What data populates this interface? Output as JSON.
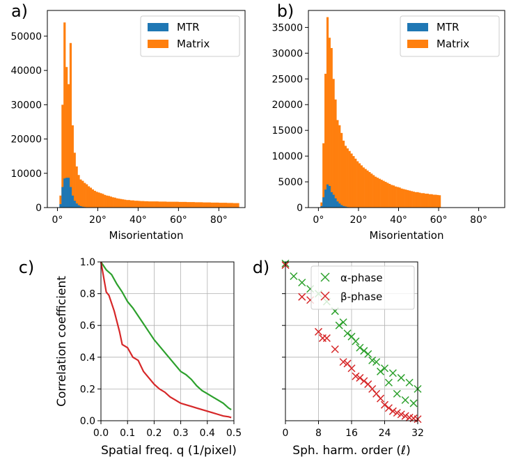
{
  "colors": {
    "mtr": "#1f77b4",
    "matrix": "#ff7f0e",
    "alpha": "#2ca02c",
    "beta": "#d62728"
  },
  "chart_data": [
    {
      "id": "a",
      "type": "bar",
      "panel_label": "a)",
      "xlabel": "Misorientation",
      "ylabel": "",
      "xlim": [
        -5,
        93
      ],
      "ylim": [
        0,
        57500
      ],
      "xticks": [
        0,
        20,
        40,
        60,
        80
      ],
      "xtick_labels": [
        "0°",
        "20°",
        "40°",
        "60°",
        "80°"
      ],
      "yticks": [
        0,
        10000,
        20000,
        30000,
        40000,
        50000
      ],
      "ytick_labels": [
        "0",
        "10000",
        "20000",
        "30000",
        "40000",
        "50000"
      ],
      "legend": "top-right",
      "bin_width": 1,
      "series": [
        {
          "name": "Matrix",
          "color_key": "matrix",
          "x0": 1,
          "values": [
            3500,
            30000,
            54000,
            41000,
            36000,
            48000,
            24000,
            16000,
            12000,
            9500,
            8200,
            7800,
            7200,
            6800,
            6200,
            5800,
            5300,
            4900,
            4600,
            4400,
            4200,
            4000,
            3700,
            3500,
            3400,
            3200,
            3000,
            2900,
            2700,
            2600,
            2500,
            2400,
            2300,
            2200,
            2200,
            2100,
            2100,
            2000,
            2000,
            1950,
            1900,
            1900,
            1850,
            1850,
            1800,
            1800,
            1800,
            1800,
            1800,
            1750,
            1750,
            1750,
            1750,
            1700,
            1700,
            1700,
            1700,
            1700,
            1700,
            1650,
            1650,
            1650,
            1650,
            1600,
            1600,
            1600,
            1600,
            1550,
            1550,
            1550,
            1550,
            1500,
            1500,
            1500,
            1500,
            1450,
            1450,
            1450,
            1450,
            1400,
            1400,
            1400,
            1400,
            1350,
            1350,
            1350,
            1300,
            1300,
            1300
          ]
        },
        {
          "name": "MTR",
          "color_key": "mtr",
          "x0": 1,
          "values": [
            1000,
            6000,
            8500,
            8700,
            8700,
            6000,
            3500,
            2000,
            1200,
            700,
            400,
            250,
            150,
            100,
            60,
            40,
            30,
            20,
            10,
            10
          ]
        }
      ]
    },
    {
      "id": "b",
      "type": "bar",
      "panel_label": "b)",
      "xlabel": "Misorientation",
      "ylabel": "",
      "xlim": [
        -5,
        93
      ],
      "ylim": [
        0,
        38300
      ],
      "xticks": [
        0,
        20,
        40,
        60,
        80
      ],
      "xtick_labels": [
        "0°",
        "20°",
        "40°",
        "60°",
        "80°"
      ],
      "yticks": [
        0,
        5000,
        10000,
        15000,
        20000,
        25000,
        30000,
        35000
      ],
      "ytick_labels": [
        "0",
        "5000",
        "10000",
        "15000",
        "20000",
        "25000",
        "30000",
        "35000"
      ],
      "legend": "top-right",
      "bin_width": 1,
      "series": [
        {
          "name": "Matrix",
          "color_key": "matrix",
          "x0": 1,
          "values": [
            1000,
            12500,
            26000,
            37000,
            33000,
            31000,
            25000,
            21000,
            17000,
            16000,
            14500,
            13000,
            12000,
            11500,
            11000,
            10500,
            10000,
            9500,
            9000,
            8600,
            8200,
            7800,
            7500,
            7200,
            6900,
            6600,
            6300,
            6000,
            5800,
            5600,
            5400,
            5200,
            5000,
            4800,
            4600,
            4400,
            4300,
            4100,
            4000,
            3900,
            3700,
            3600,
            3500,
            3400,
            3300,
            3200,
            3100,
            3000,
            3000,
            2900,
            2800,
            2800,
            2700,
            2700,
            2600,
            2600,
            2500,
            2500,
            2450,
            2400
          ]
        },
        {
          "name": "MTR",
          "color_key": "mtr",
          "x0": 1,
          "values": [
            300,
            2000,
            3500,
            4500,
            4200,
            3000,
            2500,
            1800,
            1200,
            800,
            500,
            300,
            200,
            100,
            60,
            40,
            20
          ]
        }
      ]
    },
    {
      "id": "c",
      "type": "line",
      "panel_label": "c)",
      "xlabel": "Spatial freq. q  (1/pixel)",
      "ylabel": "Correlation coefficient",
      "xlim": [
        0,
        0.5
      ],
      "ylim": [
        0,
        1.0
      ],
      "xticks": [
        0,
        0.1,
        0.2,
        0.3,
        0.4,
        0.5
      ],
      "xtick_labels": [
        "0.0",
        "0.1",
        "0.2",
        "0.3",
        "0.4",
        "0.5"
      ],
      "yticks": [
        0,
        0.2,
        0.4,
        0.6,
        0.8,
        1.0
      ],
      "ytick_labels": [
        "0.0",
        "0.2",
        "0.4",
        "0.6",
        "0.8",
        "1.0"
      ],
      "grid": true,
      "series": [
        {
          "name": "green",
          "color_key": "alpha",
          "x": [
            0,
            0.02,
            0.04,
            0.06,
            0.08,
            0.1,
            0.12,
            0.14,
            0.16,
            0.18,
            0.2,
            0.22,
            0.24,
            0.26,
            0.28,
            0.3,
            0.32,
            0.34,
            0.36,
            0.38,
            0.4,
            0.42,
            0.44,
            0.46,
            0.48,
            0.49
          ],
          "y": [
            1.0,
            0.95,
            0.92,
            0.86,
            0.81,
            0.75,
            0.71,
            0.66,
            0.61,
            0.56,
            0.51,
            0.47,
            0.43,
            0.39,
            0.35,
            0.31,
            0.29,
            0.26,
            0.22,
            0.19,
            0.17,
            0.15,
            0.13,
            0.11,
            0.08,
            0.07
          ]
        },
        {
          "name": "red",
          "color_key": "beta",
          "x": [
            0,
            0.02,
            0.03,
            0.05,
            0.07,
            0.08,
            0.1,
            0.12,
            0.14,
            0.16,
            0.18,
            0.2,
            0.22,
            0.24,
            0.26,
            0.28,
            0.3,
            0.32,
            0.34,
            0.36,
            0.38,
            0.4,
            0.42,
            0.44,
            0.46,
            0.48,
            0.49
          ],
          "y": [
            1.0,
            0.81,
            0.79,
            0.69,
            0.56,
            0.48,
            0.46,
            0.4,
            0.38,
            0.31,
            0.27,
            0.23,
            0.2,
            0.18,
            0.15,
            0.13,
            0.11,
            0.1,
            0.09,
            0.08,
            0.07,
            0.06,
            0.05,
            0.04,
            0.03,
            0.025,
            0.02
          ]
        }
      ]
    },
    {
      "id": "d",
      "type": "scatter",
      "panel_label": "d)",
      "xlabel": "Sph. harm. order (ℓ)",
      "ylabel": "",
      "xlim": [
        0,
        32
      ],
      "ylim": [
        0,
        1.0
      ],
      "xticks": [
        0,
        8,
        16,
        24,
        32
      ],
      "xtick_labels": [
        "0",
        "8",
        "16",
        "24",
        "32"
      ],
      "yticks": [
        0.2,
        0.4,
        0.6,
        0.8,
        1.0
      ],
      "ytick_labels": [
        "",
        "",
        "",
        "",
        ""
      ],
      "grid": true,
      "legend": "top-right",
      "series": [
        {
          "name": "α-phase",
          "color_key": "alpha",
          "x": [
            0,
            2,
            4,
            6,
            8,
            10,
            12,
            14,
            16,
            18,
            20,
            22,
            24,
            26,
            28,
            30,
            32,
            13,
            15,
            17,
            19,
            21,
            23,
            25,
            27,
            29,
            31
          ],
          "y": [
            0.99,
            0.91,
            0.87,
            0.83,
            0.8,
            0.75,
            0.69,
            0.62,
            0.53,
            0.46,
            0.42,
            0.37,
            0.33,
            0.3,
            0.27,
            0.24,
            0.2,
            0.6,
            0.55,
            0.5,
            0.44,
            0.38,
            0.31,
            0.24,
            0.17,
            0.13,
            0.11
          ]
        },
        {
          "name": "β-phase",
          "color_key": "beta",
          "x": [
            0,
            4,
            6,
            8,
            9,
            10,
            12,
            14,
            15,
            16,
            17,
            18,
            19,
            20,
            21,
            22,
            23,
            24,
            25,
            26,
            27,
            28,
            29,
            30,
            31,
            32
          ],
          "y": [
            0.98,
            0.78,
            0.76,
            0.56,
            0.52,
            0.52,
            0.45,
            0.37,
            0.36,
            0.33,
            0.28,
            0.27,
            0.25,
            0.23,
            0.2,
            0.17,
            0.14,
            0.1,
            0.08,
            0.06,
            0.05,
            0.04,
            0.03,
            0.02,
            0.015,
            0.01
          ]
        }
      ]
    }
  ]
}
